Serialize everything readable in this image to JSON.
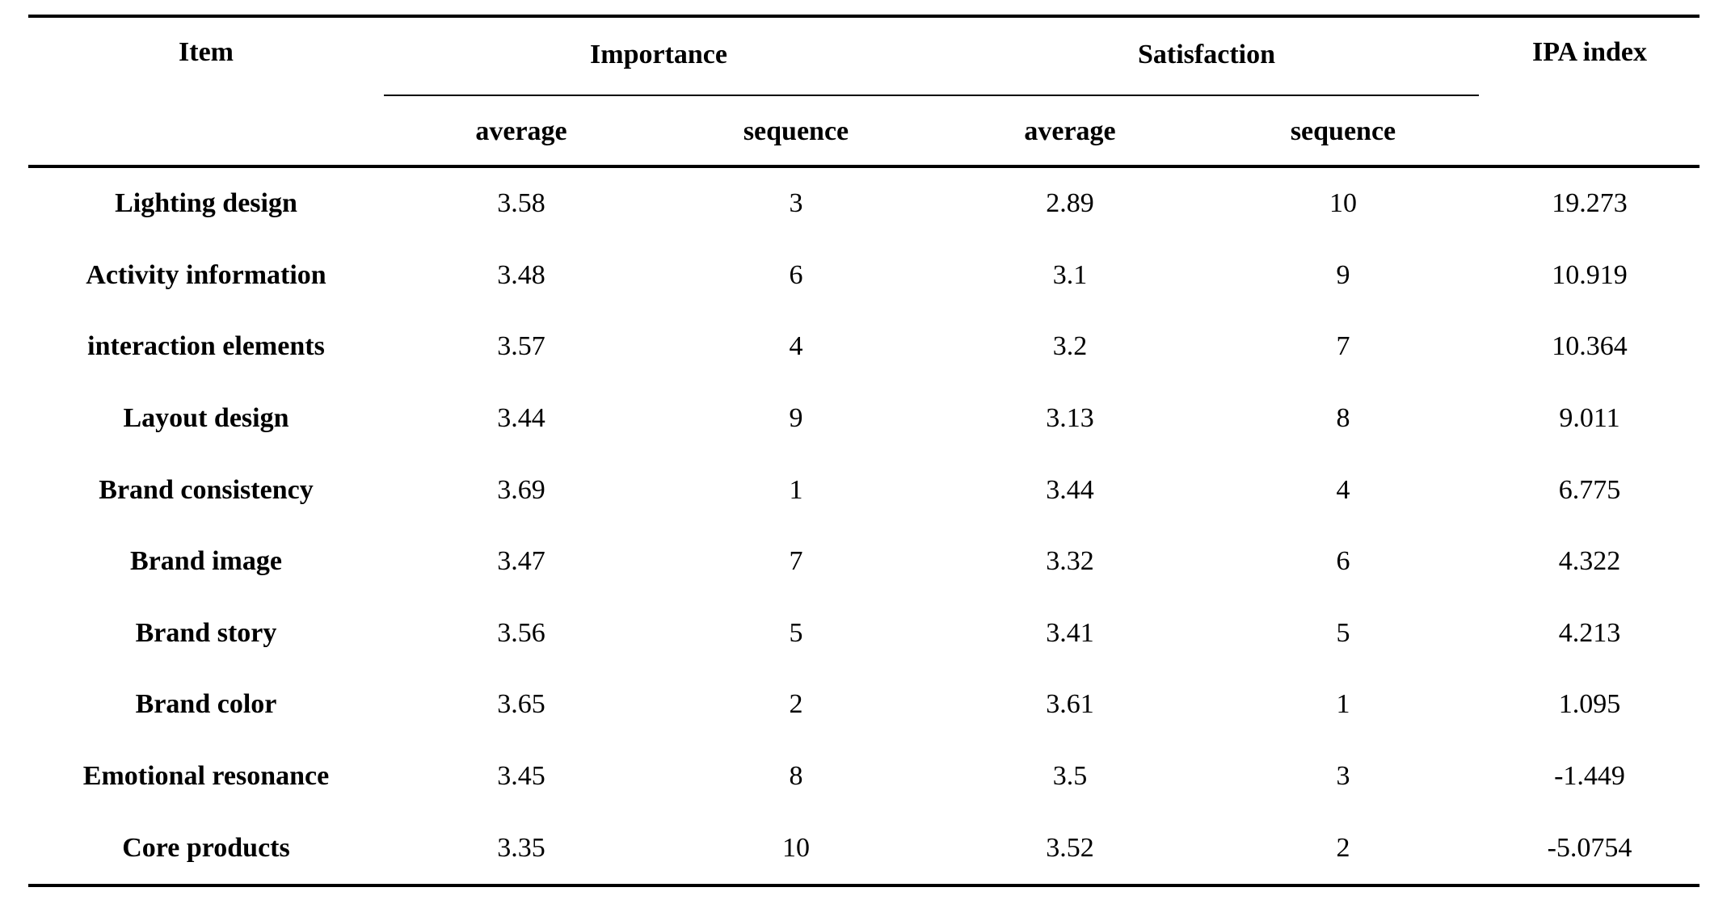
{
  "table": {
    "headers": {
      "item": "Item",
      "importance": "Importance",
      "satisfaction": "Satisfaction",
      "ipa_index": "IPA index",
      "importance_average": "average",
      "importance_sequence": "sequence",
      "satisfaction_average": "average",
      "satisfaction_sequence": "sequence"
    },
    "rows": [
      {
        "item": "Lighting design",
        "imp_avg": "3.58",
        "imp_seq": "3",
        "sat_avg": "2.89",
        "sat_seq": "10",
        "ipa": "19.273"
      },
      {
        "item": "Activity information",
        "imp_avg": "3.48",
        "imp_seq": "6",
        "sat_avg": "3.1",
        "sat_seq": "9",
        "ipa": "10.919"
      },
      {
        "item": "interaction elements",
        "imp_avg": "3.57",
        "imp_seq": "4",
        "sat_avg": "3.2",
        "sat_seq": "7",
        "ipa": "10.364"
      },
      {
        "item": "Layout design",
        "imp_avg": "3.44",
        "imp_seq": "9",
        "sat_avg": "3.13",
        "sat_seq": "8",
        "ipa": "9.011"
      },
      {
        "item": "Brand consistency",
        "imp_avg": "3.69",
        "imp_seq": "1",
        "sat_avg": "3.44",
        "sat_seq": "4",
        "ipa": "6.775"
      },
      {
        "item": "Brand image",
        "imp_avg": "3.47",
        "imp_seq": "7",
        "sat_avg": "3.32",
        "sat_seq": "6",
        "ipa": "4.322"
      },
      {
        "item": "Brand story",
        "imp_avg": "3.56",
        "imp_seq": "5",
        "sat_avg": "3.41",
        "sat_seq": "5",
        "ipa": "4.213"
      },
      {
        "item": "Brand color",
        "imp_avg": "3.65",
        "imp_seq": "2",
        "sat_avg": "3.61",
        "sat_seq": "1",
        "ipa": "1.095"
      },
      {
        "item": "Emotional resonance",
        "imp_avg": "3.45",
        "imp_seq": "8",
        "sat_avg": "3.5",
        "sat_seq": "3",
        "ipa": "-1.449"
      },
      {
        "item": "Core products",
        "imp_avg": "3.35",
        "imp_seq": "10",
        "sat_avg": "3.52",
        "sat_seq": "2",
        "ipa": "-5.0754"
      }
    ]
  }
}
